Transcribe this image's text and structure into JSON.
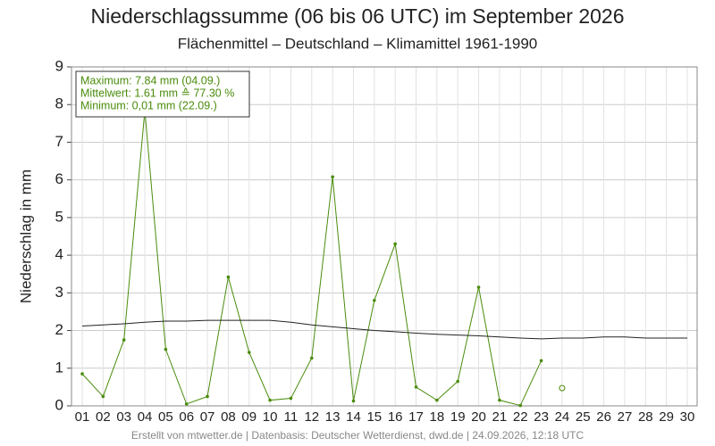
{
  "chart_data": {
    "type": "line",
    "title": "Niederschlagssumme (06 bis 06 UTC) im September 2026",
    "subtitle": "Flächenmittel – Deutschland – Klimamittel 1961-1990",
    "y_label": "Niederschlag in mm",
    "footer": "Erstellt von mtwetter.de | Datenbasis: Deutscher Wetterdienst, dwd.de | 24.09.2026, 12:18 UTC",
    "annotations": [
      "Maximum: 7.84 mm  (04.09.)",
      "Mittelwert: 1.61 mm ≙ 77.30 %",
      "Minimum:  0,01 mm  (22.09.)"
    ],
    "categories": [
      "01",
      "02",
      "03",
      "04",
      "05",
      "06",
      "07",
      "08",
      "09",
      "10",
      "11",
      "12",
      "13",
      "14",
      "15",
      "16",
      "17",
      "18",
      "19",
      "20",
      "21",
      "22",
      "23",
      "24",
      "25",
      "26",
      "27",
      "28",
      "29",
      "30"
    ],
    "series": [
      {
        "color": "#4a8c0c",
        "marker": "dot",
        "values": [
          0.85,
          0.25,
          1.75,
          7.84,
          1.5,
          0.05,
          0.25,
          3.42,
          1.42,
          0.15,
          0.2,
          1.27,
          6.08,
          0.13,
          2.8,
          4.3,
          0.5,
          0.15,
          0.65,
          3.15,
          0.15,
          0.01,
          1.2,
          null,
          null,
          null,
          null,
          null,
          null,
          null
        ]
      },
      {
        "color": "#4a8c0c",
        "marker": "open-circle",
        "values": [
          null,
          null,
          null,
          null,
          null,
          null,
          null,
          null,
          null,
          null,
          null,
          null,
          null,
          null,
          null,
          null,
          null,
          null,
          null,
          null,
          null,
          null,
          null,
          0.47,
          null,
          null,
          null,
          null,
          null,
          null
        ]
      },
      {
        "color": "#222222",
        "marker": "none",
        "values": [
          2.12,
          2.15,
          2.18,
          2.22,
          2.25,
          2.25,
          2.27,
          2.27,
          2.27,
          2.27,
          2.22,
          2.15,
          2.1,
          2.05,
          2.0,
          1.97,
          1.93,
          1.9,
          1.88,
          1.86,
          1.83,
          1.8,
          1.78,
          1.8,
          1.8,
          1.83,
          1.83,
          1.8,
          1.8,
          1.8
        ]
      }
    ],
    "ylim": [
      0,
      9
    ],
    "yticks": [
      0,
      1,
      2,
      3,
      4,
      5,
      6,
      7,
      8,
      9
    ],
    "grid": true
  }
}
